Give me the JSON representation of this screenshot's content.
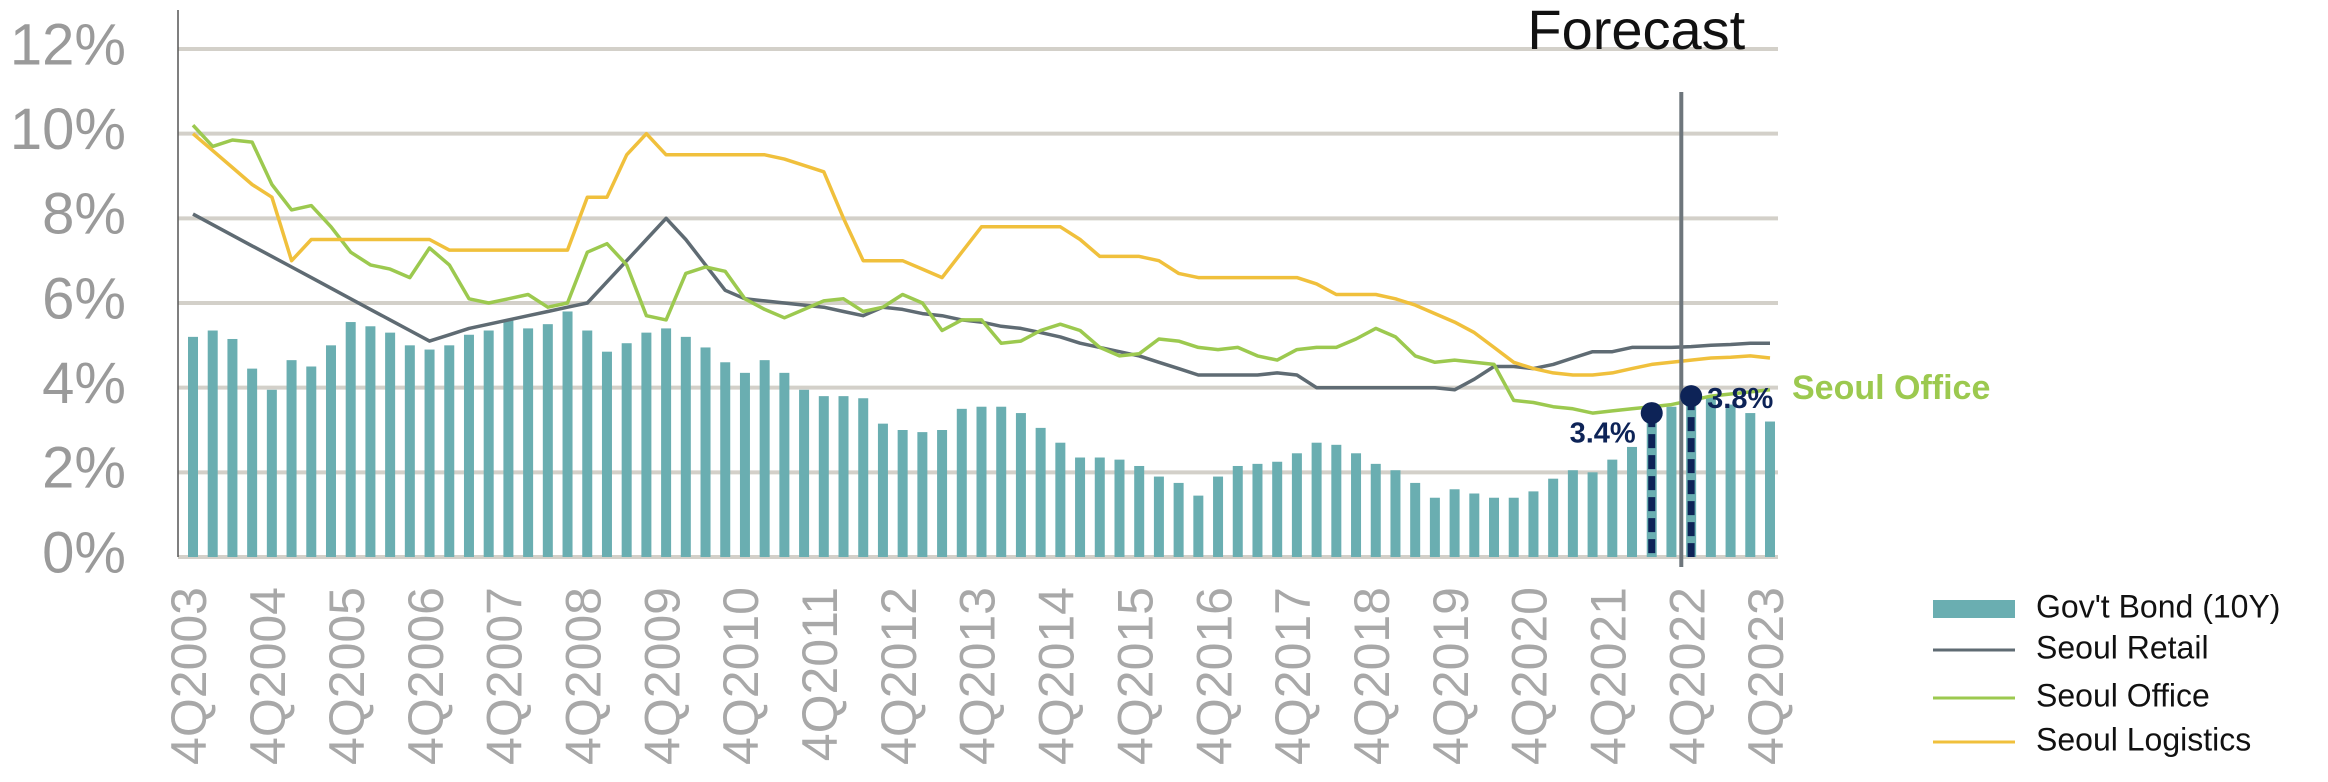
{
  "chart_data": {
    "type": "bar",
    "categories": [
      "4Q2003",
      null,
      null,
      null,
      "4Q2004",
      null,
      null,
      null,
      "4Q2005",
      null,
      null,
      null,
      "4Q2006",
      null,
      null,
      null,
      "4Q2007",
      null,
      null,
      null,
      "4Q2008",
      null,
      null,
      null,
      "4Q2009",
      null,
      null,
      null,
      "4Q2010",
      null,
      null,
      null,
      "4Q2011",
      null,
      null,
      null,
      "4Q2012",
      null,
      null,
      null,
      "4Q2013",
      null,
      null,
      null,
      "4Q2014",
      null,
      null,
      null,
      "4Q2015",
      null,
      null,
      null,
      "4Q2016",
      null,
      null,
      null,
      "4Q2017",
      null,
      null,
      null,
      "4Q2018",
      null,
      null,
      null,
      "4Q2019",
      null,
      null,
      null,
      "4Q2020",
      null,
      null,
      null,
      "4Q2021",
      null,
      null,
      null,
      "4Q2022",
      null,
      null,
      null,
      "4Q2023"
    ],
    "series": [
      {
        "name": "Gov't Bond (10Y)",
        "type": "bar",
        "color": "#6aaeb1",
        "values": [
          5.2,
          5.35,
          5.15,
          4.45,
          3.95,
          4.65,
          4.5,
          5.0,
          5.55,
          5.45,
          5.3,
          5.0,
          4.9,
          5.0,
          5.25,
          5.35,
          5.6,
          5.4,
          5.5,
          5.8,
          5.35,
          4.85,
          5.05,
          5.3,
          5.4,
          5.2,
          4.95,
          4.6,
          4.35,
          4.65,
          4.35,
          3.95,
          3.8,
          3.8,
          3.75,
          3.15,
          3.0,
          2.95,
          3.0,
          3.5,
          3.55,
          3.55,
          3.4,
          3.05,
          2.7,
          2.35,
          2.35,
          2.3,
          2.15,
          1.9,
          1.75,
          1.45,
          1.9,
          2.15,
          2.2,
          2.25,
          2.45,
          2.7,
          2.65,
          2.45,
          2.2,
          2.05,
          1.75,
          1.4,
          1.6,
          1.5,
          1.4,
          1.4,
          1.55,
          1.85,
          2.05,
          2.0,
          2.3,
          2.6,
          3.4,
          3.55,
          3.8,
          3.8,
          3.6,
          3.4,
          3.2
        ]
      },
      {
        "name": "Seoul Retail",
        "type": "line",
        "color": "#5f6b73",
        "values": [
          8.1,
          7.85,
          7.6,
          7.35,
          7.1,
          6.85,
          6.6,
          6.35,
          6.1,
          5.85,
          5.6,
          5.35,
          5.1,
          5.25,
          5.4,
          5.5,
          5.6,
          5.7,
          5.8,
          5.9,
          6.0,
          6.5,
          7.0,
          7.5,
          8.0,
          7.5,
          6.9,
          6.3,
          6.1,
          6.05,
          6.0,
          5.95,
          5.9,
          5.8,
          5.7,
          5.9,
          5.85,
          5.75,
          5.7,
          5.6,
          5.55,
          5.45,
          5.4,
          5.3,
          5.2,
          5.05,
          4.95,
          4.85,
          4.75,
          4.6,
          4.45,
          4.3,
          4.3,
          4.3,
          4.3,
          4.35,
          4.3,
          4.0,
          4.0,
          4.0,
          4.0,
          4.0,
          4.0,
          4.0,
          3.95,
          4.2,
          4.5,
          4.5,
          4.45,
          4.55,
          4.7,
          4.85,
          4.85,
          4.95,
          4.95,
          4.95,
          4.97,
          5.0,
          5.02,
          5.05,
          5.05
        ]
      },
      {
        "name": "Seoul Office",
        "type": "line",
        "color": "#9cc94f",
        "values": [
          10.2,
          9.7,
          9.85,
          9.8,
          8.8,
          8.2,
          8.3,
          7.8,
          7.2,
          6.9,
          6.8,
          6.6,
          7.3,
          6.9,
          6.1,
          6.0,
          6.1,
          6.2,
          5.9,
          6.0,
          7.2,
          7.4,
          6.9,
          5.7,
          5.6,
          6.7,
          6.85,
          6.75,
          6.1,
          5.85,
          5.65,
          5.85,
          6.05,
          6.1,
          5.8,
          5.9,
          6.2,
          6.0,
          5.35,
          5.6,
          5.6,
          5.05,
          5.1,
          5.35,
          5.5,
          5.35,
          4.95,
          4.75,
          4.8,
          5.15,
          5.1,
          4.95,
          4.9,
          4.95,
          4.75,
          4.65,
          4.9,
          4.95,
          4.95,
          5.15,
          5.4,
          5.2,
          4.75,
          4.6,
          4.65,
          4.6,
          4.55,
          3.7,
          3.65,
          3.55,
          3.5,
          3.4,
          3.45,
          3.5,
          3.55,
          3.6,
          3.7,
          3.8,
          3.85,
          3.9,
          3.95
        ]
      },
      {
        "name": "Seoul Logistics",
        "type": "line",
        "color": "#f0c03c",
        "values": [
          10.0,
          9.6,
          9.2,
          8.8,
          8.5,
          7.0,
          7.5,
          7.5,
          7.5,
          7.5,
          7.5,
          7.5,
          7.5,
          7.25,
          7.25,
          7.25,
          7.25,
          7.25,
          7.25,
          7.25,
          8.5,
          8.5,
          9.5,
          10.0,
          9.5,
          9.5,
          9.5,
          9.5,
          9.5,
          9.5,
          9.4,
          9.25,
          9.1,
          8.0,
          7.0,
          7.0,
          7.0,
          6.8,
          6.6,
          7.2,
          7.8,
          7.8,
          7.8,
          7.8,
          7.8,
          7.5,
          7.1,
          7.1,
          7.1,
          7.0,
          6.7,
          6.6,
          6.6,
          6.6,
          6.6,
          6.6,
          6.6,
          6.45,
          6.2,
          6.2,
          6.2,
          6.1,
          5.95,
          5.75,
          5.55,
          5.3,
          4.95,
          4.6,
          4.45,
          4.35,
          4.3,
          4.3,
          4.35,
          4.45,
          4.55,
          4.6,
          4.65,
          4.7,
          4.72,
          4.75,
          4.7
        ]
      }
    ],
    "ylim": [
      0,
      12
    ],
    "yticks": [
      {
        "value": 0,
        "label": "0%"
      },
      {
        "value": 2,
        "label": "2%"
      },
      {
        "value": 4,
        "label": "4%"
      },
      {
        "value": 6,
        "label": "6%"
      },
      {
        "value": 8,
        "label": "8%"
      },
      {
        "value": 10,
        "label": "10%"
      },
      {
        "value": 12,
        "label": "12%"
      }
    ],
    "grid": true,
    "legend": "bottom right",
    "forecast": {
      "label": "Forecast",
      "x": 75.5
    },
    "annotations": [
      {
        "text": "3.4%",
        "index": 74,
        "value": 3.4
      },
      {
        "text": "3.8%",
        "index": 76,
        "value": 3.8
      }
    ]
  }
}
